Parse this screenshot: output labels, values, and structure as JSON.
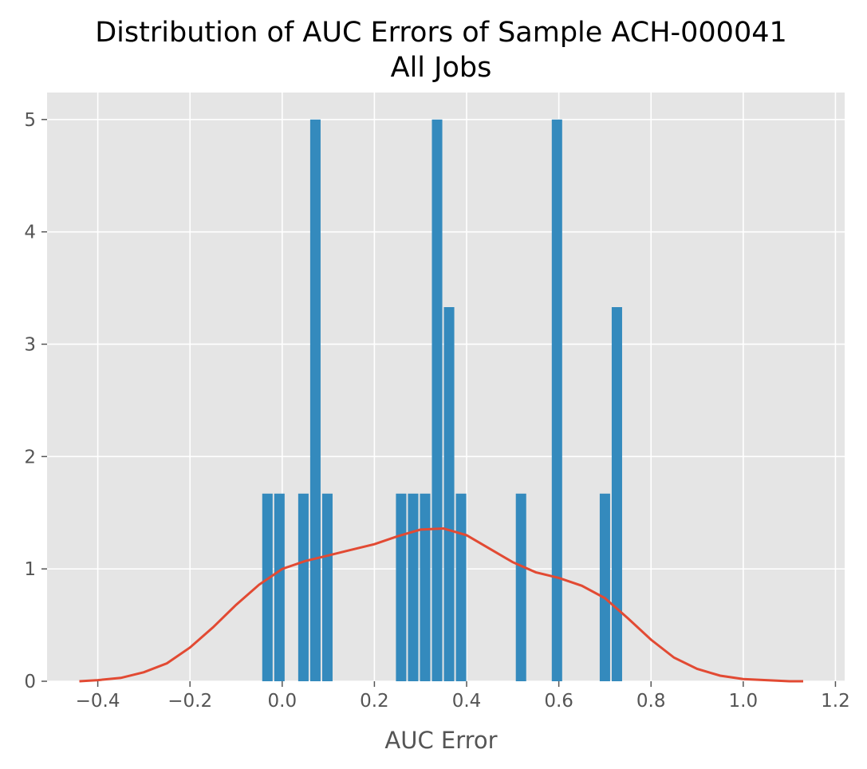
{
  "chart_data": {
    "type": "bar",
    "title": "Distribution of AUC Errors of Sample ACH-000041",
    "subtitle": "All Jobs",
    "xlabel": "AUC Error",
    "ylabel": "",
    "xlim": [
      -0.51,
      1.22
    ],
    "ylim": [
      0,
      5.24
    ],
    "xticks": [
      -0.4,
      -0.2,
      0.0,
      0.2,
      0.4,
      0.6,
      0.8,
      1.0,
      1.2
    ],
    "xtick_labels": [
      "−0.4",
      "−0.2",
      "0.0",
      "0.2",
      "0.4",
      "0.6",
      "0.8",
      "1.0",
      "1.2"
    ],
    "yticks": [
      0,
      1,
      2,
      3,
      4,
      5
    ],
    "ytick_labels": [
      "0",
      "1",
      "2",
      "3",
      "4",
      "5"
    ],
    "grid": true,
    "bar_color": "#348ABD",
    "kde_color": "#E24A33",
    "background_color": "#E5E5E5",
    "series": [
      {
        "type": "histogram",
        "bin_width": 0.026,
        "bins": [
          {
            "x": -0.032,
            "value": 1.67
          },
          {
            "x": -0.006,
            "value": 1.67
          },
          {
            "x": 0.046,
            "value": 1.67
          },
          {
            "x": 0.072,
            "value": 5.0
          },
          {
            "x": 0.098,
            "value": 1.67
          },
          {
            "x": 0.258,
            "value": 1.67
          },
          {
            "x": 0.284,
            "value": 1.67
          },
          {
            "x": 0.31,
            "value": 1.67
          },
          {
            "x": 0.336,
            "value": 5.0
          },
          {
            "x": 0.362,
            "value": 3.33
          },
          {
            "x": 0.388,
            "value": 1.67
          },
          {
            "x": 0.518,
            "value": 1.67
          },
          {
            "x": 0.596,
            "value": 5.0
          },
          {
            "x": 0.7,
            "value": 1.67
          },
          {
            "x": 0.726,
            "value": 3.33
          }
        ]
      },
      {
        "type": "kde",
        "x": [
          -0.44,
          -0.4,
          -0.35,
          -0.3,
          -0.25,
          -0.2,
          -0.15,
          -0.1,
          -0.05,
          0.0,
          0.05,
          0.1,
          0.15,
          0.2,
          0.25,
          0.3,
          0.35,
          0.4,
          0.45,
          0.5,
          0.55,
          0.6,
          0.65,
          0.7,
          0.75,
          0.8,
          0.85,
          0.9,
          0.95,
          1.0,
          1.05,
          1.1,
          1.13
        ],
        "y": [
          0.0,
          0.01,
          0.03,
          0.08,
          0.16,
          0.3,
          0.48,
          0.68,
          0.86,
          1.0,
          1.07,
          1.12,
          1.17,
          1.22,
          1.29,
          1.35,
          1.36,
          1.3,
          1.18,
          1.06,
          0.97,
          0.92,
          0.85,
          0.74,
          0.56,
          0.37,
          0.21,
          0.11,
          0.05,
          0.02,
          0.01,
          0.0,
          0.0
        ]
      }
    ]
  }
}
